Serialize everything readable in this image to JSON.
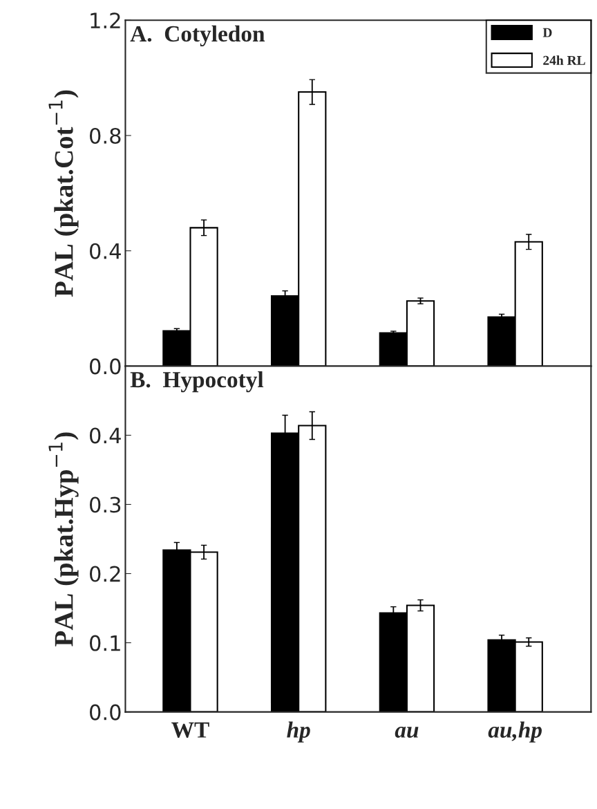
{
  "chart_data": [
    {
      "type": "bar",
      "title": "A.  Cotyledon",
      "ylabel": "PAL (pkat.Cot$^{−1}$)",
      "categories": [
        null,
        null,
        null,
        null
      ],
      "ylim": [
        0,
        1.2
      ],
      "yticks": [
        {
          "value": 0,
          "label": "0.0"
        },
        0.4,
        0.8,
        1.2
      ],
      "tick_labels": "y",
      "legend": "top right",
      "series": [
        {
          "name": "D",
          "color": "#000000",
          "values": [
            0.122,
            0.243,
            0.115,
            0.17
          ],
          "errors": [
            0.008,
            0.018,
            0.006,
            0.01
          ]
        },
        {
          "name": "24h RL",
          "color": "#ffffff",
          "values": [
            0.48,
            0.951,
            0.226,
            0.431
          ],
          "errors": [
            0.027,
            0.043,
            0.01,
            0.026
          ]
        }
      ]
    },
    {
      "type": "bar",
      "title": "B.  Hypocotyl",
      "ylabel": "PAL (pkat.Hyp$^{−1}$)",
      "categories": [
        "WT",
        "hp",
        "au",
        "au,hp"
      ],
      "ylim": [
        0,
        0.5
      ],
      "yticks": [
        {
          "value": 0,
          "label": "0.0"
        },
        0.1,
        0.2,
        0.3,
        0.4
      ],
      "series": [
        {
          "color": "#000000",
          "values": [
            0.234,
            0.403,
            0.143,
            0.104
          ],
          "errors": [
            0.011,
            0.026,
            0.009,
            0.007
          ]
        },
        {
          "color": "#ffffff",
          "values": [
            0.231,
            0.414,
            0.154,
            0.101
          ],
          "errors": [
            0.01,
            0.02,
            0.008,
            0.006
          ]
        }
      ]
    }
  ]
}
